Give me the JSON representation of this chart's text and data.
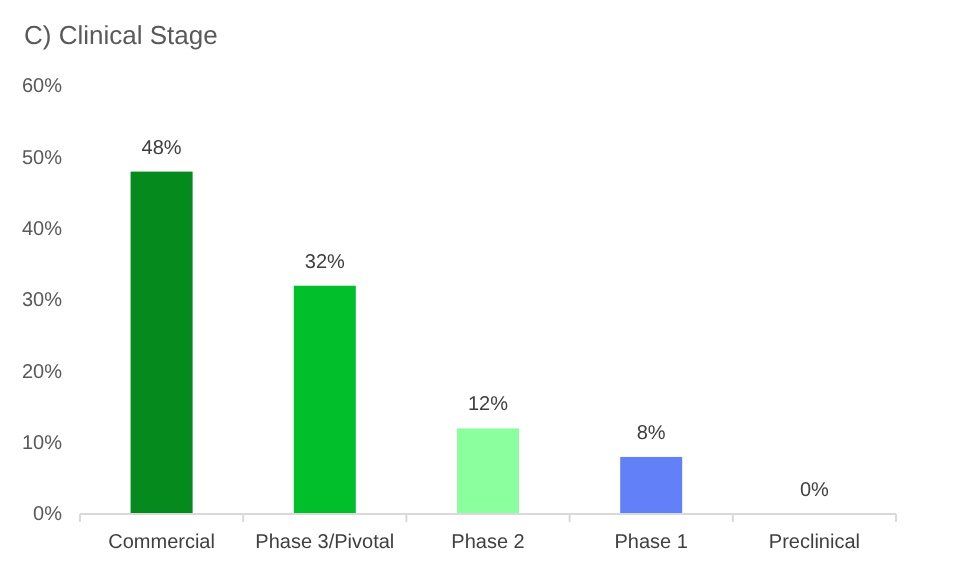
{
  "chart_data": {
    "type": "bar",
    "title": "C) Clinical Stage",
    "categories": [
      "Commercial",
      "Phase 3/Pivotal",
      "Phase 2",
      "Phase 1",
      "Preclinical"
    ],
    "values": [
      48,
      32,
      12,
      8,
      0
    ],
    "colors": [
      "#058a1e",
      "#00bf2b",
      "#8bff9e",
      "#6280f8",
      "#6280f8"
    ],
    "ylim": [
      0,
      60
    ],
    "yticks": [
      {
        "value": 0,
        "label": "0%"
      },
      {
        "value": 10,
        "label": "10%"
      },
      {
        "value": 20,
        "label": "20%"
      },
      {
        "value": 30,
        "label": "30%"
      },
      {
        "value": 40,
        "label": "40%"
      },
      {
        "value": 50,
        "label": "50%"
      },
      {
        "value": 60,
        "label": "60%"
      }
    ],
    "value_labels": [
      "48%",
      "32%",
      "12%",
      "8%",
      "0%"
    ],
    "grid": false
  }
}
